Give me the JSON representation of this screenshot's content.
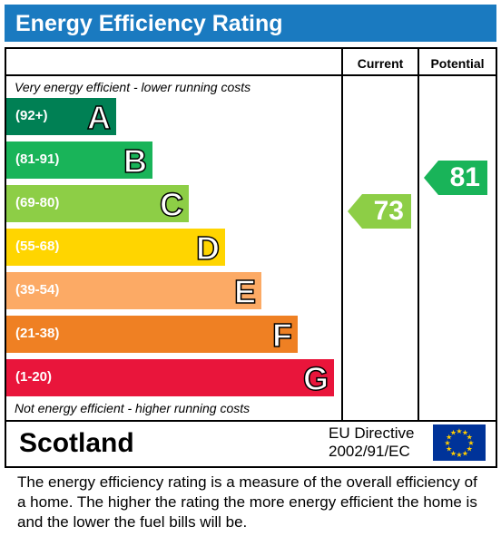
{
  "title": "Energy Efficiency Rating",
  "columns": {
    "current": "Current",
    "potential": "Potential"
  },
  "notes": {
    "top": "Very energy efficient - lower running costs",
    "bottom": "Not energy efficient - higher running costs"
  },
  "bands": [
    {
      "range": "(92+)",
      "letter": "A",
      "color": "#008054"
    },
    {
      "range": "(81-91)",
      "letter": "B",
      "color": "#19b459"
    },
    {
      "range": "(69-80)",
      "letter": "C",
      "color": "#8dce46"
    },
    {
      "range": "(55-68)",
      "letter": "D",
      "color": "#ffd500"
    },
    {
      "range": "(39-54)",
      "letter": "E",
      "color": "#fcaa65"
    },
    {
      "range": "(21-38)",
      "letter": "F",
      "color": "#ef8023"
    },
    {
      "range": "(1-20)",
      "letter": "G",
      "color": "#e9153b"
    }
  ],
  "ratings": {
    "current": {
      "value": "73",
      "band": "C",
      "color": "#8dce46"
    },
    "potential": {
      "value": "81",
      "band": "B",
      "color": "#19b459"
    }
  },
  "footer": {
    "region": "Scotland",
    "directive_line1": "EU Directive",
    "directive_line2": "2002/91/EC",
    "flag_icon": "eu-flag-icon"
  },
  "description": "The energy efficiency rating is a measure of the overall efficiency of a home.  The higher the rating the more energy efficient the home is and the lower the fuel bills will be."
}
